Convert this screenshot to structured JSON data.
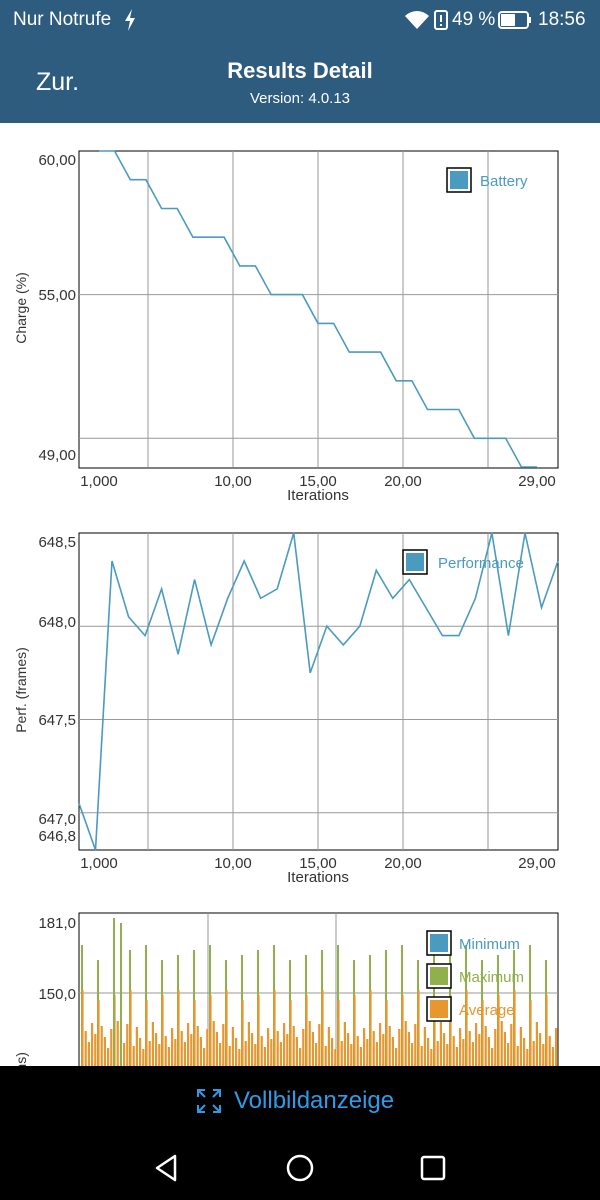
{
  "status_bar": {
    "carrier": "Nur Notrufe",
    "battery_percent": "49 %",
    "time": "18:56",
    "bg_color": "#2d5c7f"
  },
  "header": {
    "back_label": "Zur.",
    "title": "Results Detail",
    "version": "Version: 4.0.13"
  },
  "charts": {
    "battery": {
      "ylabel": "Charge (%)",
      "xlabel": "Iterations",
      "ytick_labels": [
        "60,00",
        "55,00",
        "49,00"
      ],
      "xtick_labels": [
        "1,000",
        "10,00",
        "15,00",
        "20,00",
        "29,00"
      ],
      "legend": [
        "Battery"
      ]
    },
    "performance": {
      "ylabel": "Perf. (frames)",
      "xlabel": "Iterations",
      "ytick_labels": [
        "648,5",
        "648,0",
        "647,5",
        "647,0",
        "646,8"
      ],
      "xtick_labels": [
        "1,000",
        "10,00",
        "15,00",
        "20,00",
        "29,00"
      ],
      "legend": [
        "Performance"
      ]
    },
    "frametimes": {
      "ylabel": "Frametimes (ms)",
      "ytick_labels": [
        "181,0",
        "150,0"
      ],
      "legend": [
        "Minimum",
        "Maximum",
        "Average"
      ]
    }
  },
  "chart_data": [
    {
      "type": "line",
      "ylabel": "Charge (%)",
      "xlabel": "Iterations",
      "ylim": [
        49,
        60
      ],
      "xlim": [
        1,
        29
      ],
      "grid": true,
      "legend_position": "top-right",
      "x": [
        1,
        2,
        3,
        4,
        5,
        6,
        7,
        8,
        9,
        10,
        11,
        12,
        13,
        14,
        15,
        16,
        17,
        18,
        19,
        20,
        21,
        22,
        23,
        24,
        25,
        26,
        27,
        28,
        29
      ],
      "series": [
        {
          "name": "Battery",
          "color": "#4a9bbf",
          "values": [
            60,
            60,
            59,
            59,
            58,
            58,
            57,
            57,
            57,
            56,
            56,
            55,
            55,
            55,
            54,
            54,
            53,
            53,
            53,
            52,
            52,
            51,
            51,
            51,
            50,
            50,
            50,
            49,
            49
          ]
        }
      ]
    },
    {
      "type": "line",
      "ylabel": "Perf. (frames)",
      "xlabel": "Iterations",
      "ylim": [
        646.8,
        648.5
      ],
      "xlim": [
        0,
        29
      ],
      "grid": true,
      "legend_position": "top-right",
      "x": [
        0,
        1,
        2,
        3,
        4,
        5,
        6,
        7,
        8,
        9,
        10,
        11,
        12,
        13,
        14,
        15,
        16,
        17,
        18,
        19,
        20,
        21,
        22,
        23,
        24,
        25,
        26,
        27,
        28,
        29
      ],
      "series": [
        {
          "name": "Performance",
          "color": "#4a9bbf",
          "values": [
            647.05,
            646.8,
            648.35,
            648.05,
            647.95,
            648.2,
            647.85,
            648.25,
            647.9,
            648.15,
            648.35,
            648.15,
            648.2,
            648.5,
            647.75,
            648.0,
            647.9,
            648.0,
            648.3,
            648.15,
            648.25,
            648.1,
            647.95,
            647.95,
            648.15,
            648.5,
            647.95,
            648.5,
            648.1,
            648.35
          ]
        }
      ]
    },
    {
      "type": "bar",
      "ylabel": "Frametimes (ms)",
      "ylim": [
        125,
        181
      ],
      "grid": true,
      "legend_position": "top-right",
      "series": [
        {
          "name": "Minimum",
          "color": "#4a9bbf"
        },
        {
          "name": "Maximum",
          "color": "#8fb04a"
        },
        {
          "name": "Average",
          "color": "#e8962e"
        }
      ]
    }
  ],
  "bottom": {
    "fullscreen_label": "Vollbildanzeige"
  }
}
